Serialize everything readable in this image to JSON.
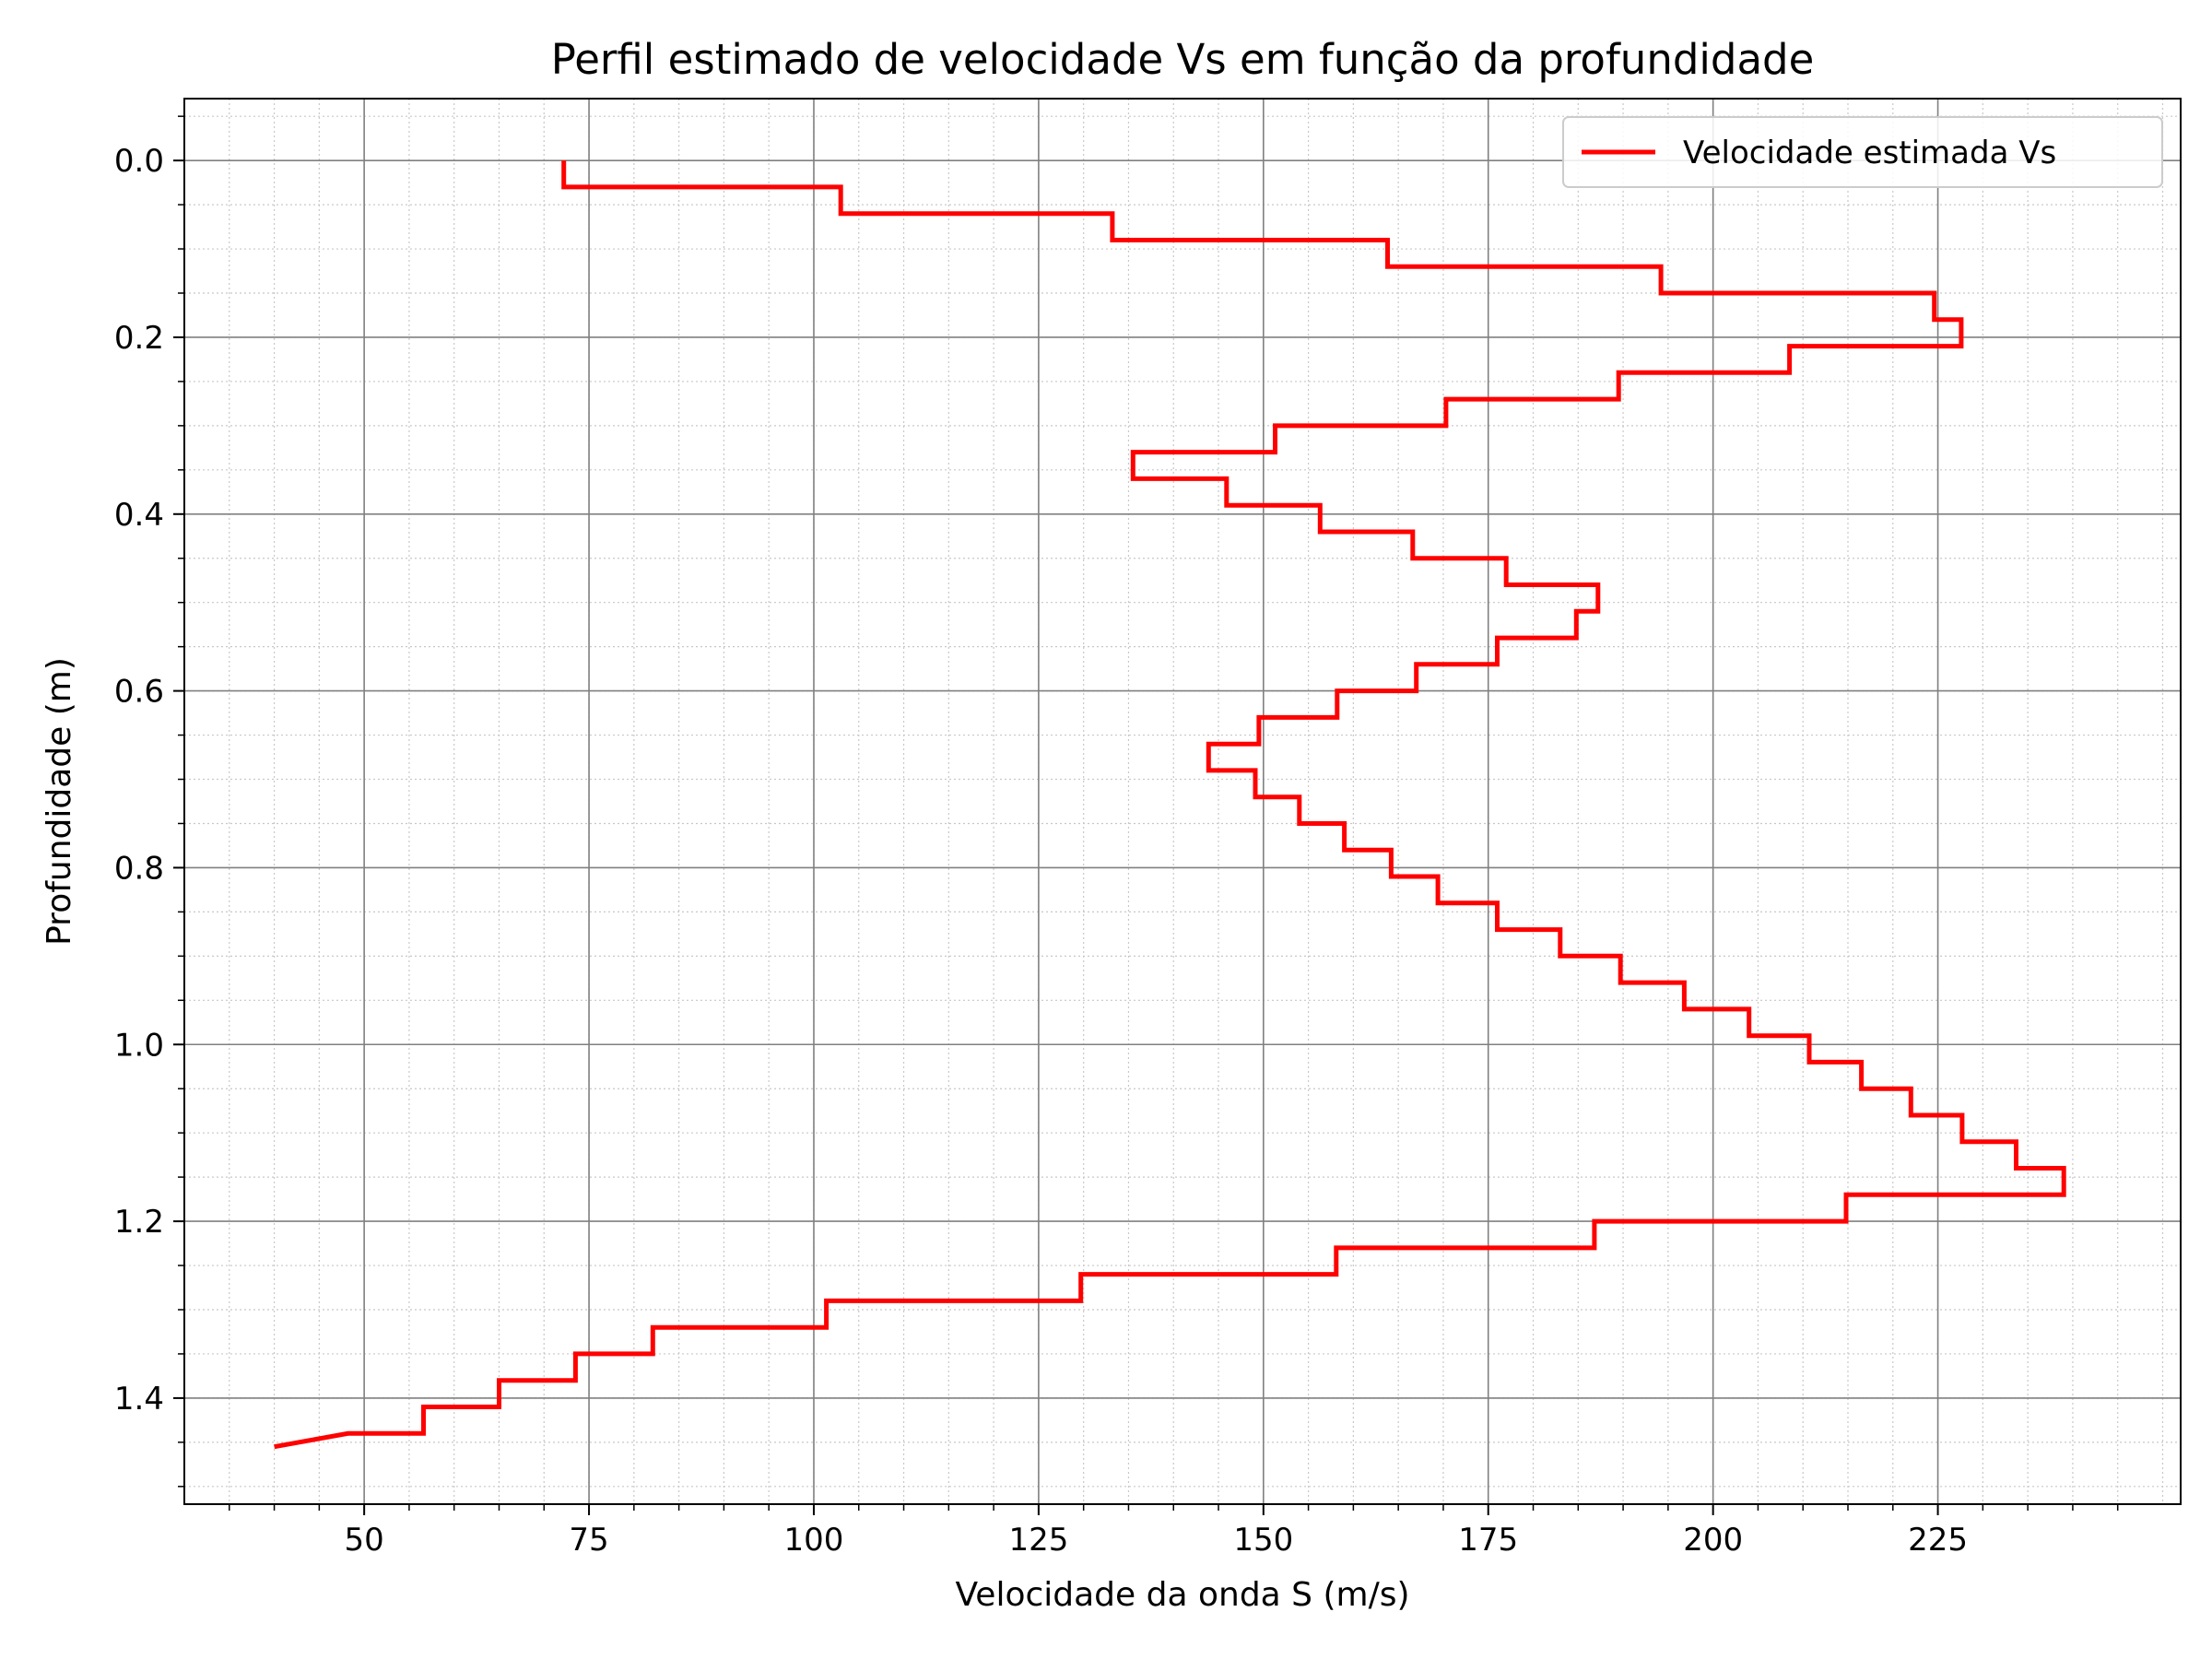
{
  "chart_data": {
    "type": "line",
    "step": true,
    "title": "Perfil estimado de velocidade Vs em função da profundidade",
    "xlabel": "Velocidade da onda S (m/s)",
    "ylabel": "Profundidade (m)",
    "xlim": [
      30,
      252
    ],
    "ylim": [
      1.52,
      -0.07
    ],
    "y_inverted": true,
    "grid": true,
    "minor_grid": true,
    "legend_position": "top-right",
    "x_ticks": [
      50,
      75,
      100,
      125,
      150,
      175,
      200,
      225
    ],
    "x_tick_labels": [
      "50",
      "75",
      "100",
      "125",
      "150",
      "175",
      "200",
      "225"
    ],
    "y_ticks": [
      0.0,
      0.2,
      0.4,
      0.6,
      0.8,
      1.0,
      1.2,
      1.4
    ],
    "y_tick_labels": [
      "0.0",
      "0.2",
      "0.4",
      "0.6",
      "0.8",
      "1.0",
      "1.2",
      "1.4"
    ],
    "series": [
      {
        "name": "Velocidade estimada Vs",
        "color": "#ff0000",
        "layer_thickness": 0.03,
        "depth_top": [
          0.0,
          0.03,
          0.06,
          0.09,
          0.12,
          0.15,
          0.18,
          0.21,
          0.24,
          0.27,
          0.3,
          0.33,
          0.36,
          0.39,
          0.42,
          0.45,
          0.48,
          0.51,
          0.54,
          0.57,
          0.6,
          0.63,
          0.66,
          0.69,
          0.72,
          0.75,
          0.78,
          0.81,
          0.84,
          0.87,
          0.9,
          0.93,
          0.96,
          0.99,
          1.02,
          1.05,
          1.08,
          1.11,
          1.14,
          1.17,
          1.2,
          1.23,
          1.26,
          1.29,
          1.32,
          1.35,
          1.38,
          1.41,
          1.44
        ],
        "velocity": [
          72.2,
          103.0,
          133.2,
          163.8,
          194.2,
          224.6,
          227.6,
          208.5,
          189.5,
          170.3,
          151.3,
          135.5,
          145.9,
          156.3,
          166.6,
          177.0,
          187.2,
          184.8,
          176.0,
          167.0,
          158.2,
          149.5,
          143.9,
          149.1,
          154.0,
          159.0,
          164.2,
          169.4,
          176.0,
          183.0,
          189.7,
          196.8,
          204.0,
          210.7,
          216.5,
          222.0,
          227.7,
          233.7,
          239.0,
          214.8,
          186.8,
          158.1,
          129.7,
          101.4,
          82.1,
          73.5,
          65.0,
          56.6,
          48.2,
          40.0
        ],
        "final_depth": 1.455
      }
    ]
  }
}
